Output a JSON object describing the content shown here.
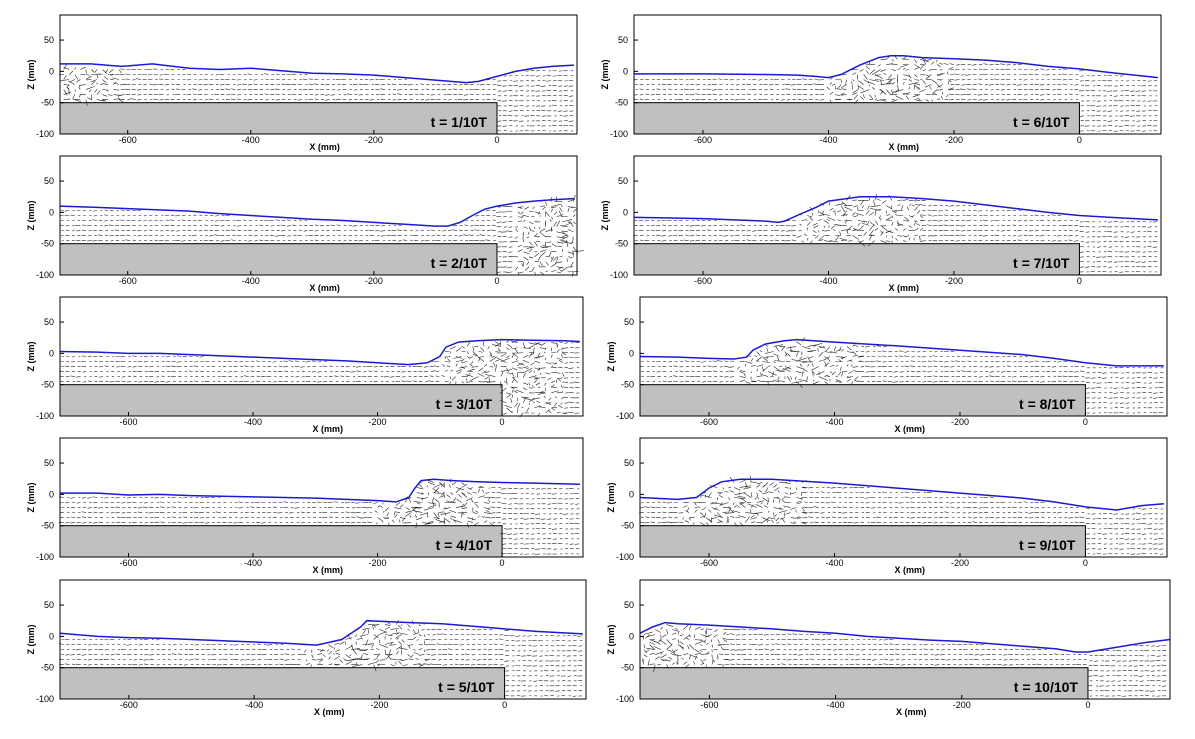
{
  "figure": {
    "xlabel": "X (mm)",
    "ylabel": "Z (mm)",
    "colors": {
      "surface": "#1a1ad6",
      "step": "#c0c0c0",
      "vectors": "#222222",
      "frame": "#000000"
    }
  },
  "chart_data": [
    {
      "type": "quiver",
      "title": "t = 1/10T",
      "xlabel": "X (mm)",
      "ylabel": "Z (mm)",
      "xlim": [
        -710,
        130
      ],
      "ylim": [
        -100,
        90
      ],
      "xticks": [
        -600,
        -400,
        -200,
        0
      ],
      "yticks": [
        -100,
        -50,
        0,
        50
      ],
      "step": {
        "x_end": 0,
        "z_top": -50
      },
      "surface_x": [
        -710,
        -660,
        -610,
        -560,
        -500,
        -450,
        -400,
        -350,
        -300,
        -250,
        -200,
        -150,
        -100,
        -50,
        -30,
        0,
        30,
        60,
        90,
        125
      ],
      "surface_z": [
        12,
        12,
        8,
        12,
        5,
        3,
        5,
        1,
        -3,
        -4,
        -6,
        -10,
        -14,
        -18,
        -16,
        -8,
        0,
        5,
        8,
        10
      ]
    },
    {
      "type": "quiver",
      "title": "t = 2/10T",
      "xlabel": "X (mm)",
      "ylabel": "Z (mm)",
      "xlim": [
        -710,
        130
      ],
      "ylim": [
        -100,
        90
      ],
      "xticks": [
        -600,
        -400,
        -200,
        0
      ],
      "yticks": [
        -100,
        -50,
        0,
        50
      ],
      "step": {
        "x_end": 0,
        "z_top": -50
      },
      "surface_x": [
        -710,
        -650,
        -600,
        -550,
        -500,
        -450,
        -400,
        -350,
        -300,
        -250,
        -200,
        -150,
        -100,
        -80,
        -60,
        -40,
        -20,
        0,
        30,
        60,
        90,
        125
      ],
      "surface_z": [
        10,
        8,
        6,
        4,
        2,
        -2,
        -5,
        -8,
        -11,
        -13,
        -16,
        -19,
        -22,
        -22,
        -16,
        -5,
        5,
        10,
        15,
        18,
        20,
        22
      ]
    },
    {
      "type": "quiver",
      "title": "t = 3/10T",
      "xlabel": "X (mm)",
      "ylabel": "Z (mm)",
      "xlim": [
        -710,
        130
      ],
      "ylim": [
        -100,
        90
      ],
      "xticks": [
        -600,
        -400,
        -200,
        0
      ],
      "yticks": [
        -100,
        -50,
        0,
        50
      ],
      "step": {
        "x_end": 0,
        "z_top": -50
      },
      "surface_x": [
        -710,
        -650,
        -600,
        -550,
        -500,
        -450,
        -400,
        -350,
        -300,
        -250,
        -200,
        -150,
        -120,
        -100,
        -90,
        -70,
        -40,
        0,
        50,
        100,
        125
      ],
      "surface_z": [
        3,
        2,
        0,
        0,
        -2,
        -4,
        -6,
        -8,
        -10,
        -12,
        -15,
        -18,
        -15,
        -5,
        10,
        18,
        20,
        22,
        21,
        20,
        19
      ]
    },
    {
      "type": "quiver",
      "title": "t = 4/10T",
      "xlabel": "X (mm)",
      "ylabel": "Z (mm)",
      "xlim": [
        -710,
        130
      ],
      "ylim": [
        -100,
        90
      ],
      "xticks": [
        -600,
        -400,
        -200,
        0
      ],
      "yticks": [
        -100,
        -50,
        0,
        50
      ],
      "step": {
        "x_end": 0,
        "z_top": -50
      },
      "surface_x": [
        -710,
        -650,
        -600,
        -550,
        -500,
        -450,
        -400,
        -350,
        -300,
        -250,
        -200,
        -170,
        -150,
        -140,
        -130,
        -110,
        -80,
        -40,
        0,
        50,
        125
      ],
      "surface_z": [
        2,
        2,
        -1,
        0,
        -2,
        -3,
        -4,
        -5,
        -6,
        -8,
        -10,
        -12,
        -5,
        10,
        22,
        24,
        22,
        20,
        19,
        18,
        16
      ]
    },
    {
      "type": "quiver",
      "title": "t = 5/10T",
      "xlabel": "X (mm)",
      "ylabel": "Z (mm)",
      "xlim": [
        -710,
        130
      ],
      "ylim": [
        -100,
        90
      ],
      "xticks": [
        -600,
        -400,
        -200,
        0
      ],
      "yticks": [
        -100,
        -50,
        0,
        50
      ],
      "step": {
        "x_end": 0,
        "z_top": -50
      },
      "surface_x": [
        -710,
        -650,
        -600,
        -550,
        -500,
        -450,
        -400,
        -350,
        -300,
        -260,
        -230,
        -220,
        -200,
        -150,
        -100,
        -50,
        0,
        50,
        125
      ],
      "surface_z": [
        5,
        0,
        -2,
        -3,
        -5,
        -7,
        -9,
        -11,
        -14,
        -5,
        15,
        25,
        24,
        22,
        20,
        16,
        12,
        8,
        4
      ]
    },
    {
      "type": "quiver",
      "title": "t = 6/10T",
      "xlabel": "X (mm)",
      "ylabel": "Z (mm)",
      "xlim": [
        -710,
        130
      ],
      "ylim": [
        -100,
        90
      ],
      "xticks": [
        -600,
        -400,
        -200,
        0
      ],
      "yticks": [
        -100,
        -50,
        0,
        50
      ],
      "step": {
        "x_end": 0,
        "z_top": -50
      },
      "surface_x": [
        -710,
        -600,
        -500,
        -450,
        -420,
        -400,
        -380,
        -350,
        -320,
        -300,
        -280,
        -250,
        -200,
        -150,
        -100,
        -50,
        0,
        50,
        125
      ],
      "surface_z": [
        -4,
        -4,
        -5,
        -6,
        -8,
        -10,
        -5,
        10,
        22,
        25,
        25,
        22,
        20,
        18,
        14,
        8,
        4,
        -2,
        -10
      ]
    },
    {
      "type": "quiver",
      "title": "t = 7/10T",
      "xlabel": "X (mm)",
      "ylabel": "Z (mm)",
      "xlim": [
        -710,
        130
      ],
      "ylim": [
        -100,
        90
      ],
      "xticks": [
        -600,
        -400,
        -200,
        0
      ],
      "yticks": [
        -100,
        -50,
        0,
        50
      ],
      "step": {
        "x_end": 0,
        "z_top": -50
      },
      "surface_x": [
        -710,
        -650,
        -600,
        -550,
        -500,
        -480,
        -470,
        -450,
        -420,
        -400,
        -350,
        -300,
        -250,
        -200,
        -150,
        -100,
        -50,
        0,
        50,
        125
      ],
      "surface_z": [
        -8,
        -9,
        -10,
        -12,
        -14,
        -16,
        -14,
        -5,
        8,
        18,
        25,
        25,
        22,
        18,
        12,
        6,
        0,
        -5,
        -8,
        -12
      ]
    },
    {
      "type": "quiver",
      "title": "t = 8/10T",
      "xlabel": "X (mm)",
      "ylabel": "Z (mm)",
      "xlim": [
        -710,
        130
      ],
      "ylim": [
        -100,
        90
      ],
      "xticks": [
        -600,
        -400,
        -200,
        0
      ],
      "yticks": [
        -100,
        -50,
        0,
        50
      ],
      "step": {
        "x_end": 0,
        "z_top": -50
      },
      "surface_x": [
        -710,
        -650,
        -600,
        -560,
        -540,
        -530,
        -510,
        -480,
        -460,
        -400,
        -300,
        -200,
        -100,
        -50,
        0,
        50,
        125
      ],
      "surface_z": [
        -5,
        -6,
        -8,
        -9,
        -6,
        5,
        15,
        20,
        22,
        18,
        12,
        5,
        -2,
        -8,
        -15,
        -20,
        -20
      ]
    },
    {
      "type": "quiver",
      "title": "t = 9/10T",
      "xlabel": "X (mm)",
      "ylabel": "Z (mm)",
      "xlim": [
        -710,
        130
      ],
      "ylim": [
        -100,
        90
      ],
      "xticks": [
        -600,
        -400,
        -200,
        0
      ],
      "yticks": [
        -100,
        -50,
        0,
        50
      ],
      "step": {
        "x_end": 0,
        "z_top": -50
      },
      "surface_x": [
        -710,
        -650,
        -620,
        -600,
        -580,
        -550,
        -500,
        -400,
        -300,
        -200,
        -100,
        -50,
        0,
        50,
        90,
        125
      ],
      "surface_z": [
        -5,
        -8,
        -5,
        10,
        20,
        24,
        24,
        18,
        10,
        2,
        -6,
        -12,
        -20,
        -25,
        -18,
        -15
      ]
    },
    {
      "type": "quiver",
      "title": "t = 10/10T",
      "xlabel": "X (mm)",
      "ylabel": "Z (mm)",
      "xlim": [
        -710,
        130
      ],
      "ylim": [
        -100,
        90
      ],
      "xticks": [
        -600,
        -400,
        -200,
        0
      ],
      "yticks": [
        -100,
        -50,
        0,
        50
      ],
      "step": {
        "x_end": 0,
        "z_top": -50
      },
      "surface_x": [
        -710,
        -690,
        -670,
        -650,
        -600,
        -550,
        -500,
        -450,
        -400,
        -350,
        -300,
        -250,
        -200,
        -150,
        -100,
        -50,
        -20,
        0,
        30,
        60,
        90,
        130
      ],
      "surface_z": [
        5,
        15,
        22,
        20,
        18,
        15,
        12,
        8,
        5,
        0,
        -3,
        -6,
        -8,
        -12,
        -16,
        -20,
        -25,
        -25,
        -20,
        -15,
        -10,
        -5
      ]
    }
  ]
}
